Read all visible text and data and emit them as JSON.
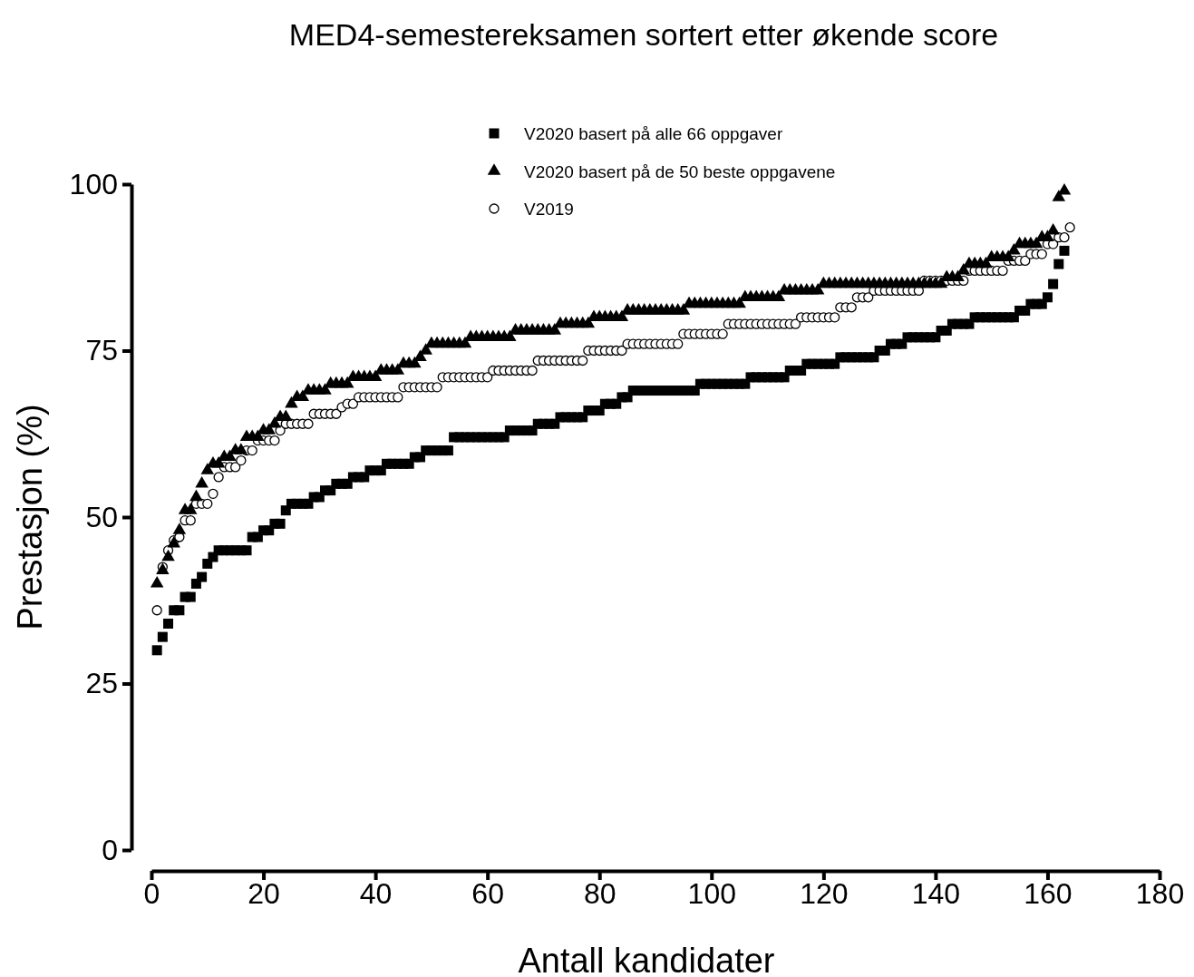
{
  "chart_data": {
    "type": "scatter",
    "title": "MED4-semestereksamen sortert etter økende score",
    "xlabel": "Antall kandidater",
    "ylabel": "Prestasjon (%)",
    "x": [
      1,
      2,
      3,
      4,
      5,
      6,
      7,
      8,
      9,
      10,
      11,
      12,
      13,
      14,
      15,
      16,
      17,
      18,
      19,
      20,
      21,
      22,
      23,
      24,
      25,
      26,
      27,
      28,
      29,
      30,
      31,
      32,
      33,
      34,
      35,
      36,
      37,
      38,
      39,
      40,
      41,
      42,
      43,
      44,
      45,
      46,
      47,
      48,
      49,
      50,
      51,
      52,
      53,
      54,
      55,
      56,
      57,
      58,
      59,
      60,
      61,
      62,
      63,
      64,
      65,
      66,
      67,
      68,
      69,
      70,
      71,
      72,
      73,
      74,
      75,
      76,
      77,
      78,
      79,
      80,
      81,
      82,
      83,
      84,
      85,
      86,
      87,
      88,
      89,
      90,
      91,
      92,
      93,
      94,
      95,
      96,
      97,
      98,
      99,
      100,
      101,
      102,
      103,
      104,
      105,
      106,
      107,
      108,
      109,
      110,
      111,
      112,
      113,
      114,
      115,
      116,
      117,
      118,
      119,
      120,
      121,
      122,
      123,
      124,
      125,
      126,
      127,
      128,
      129,
      130,
      131,
      132,
      133,
      134,
      135,
      136,
      137,
      138,
      139,
      140,
      141,
      142,
      143,
      144,
      145,
      146,
      147,
      148,
      149,
      150,
      151,
      152,
      153,
      154,
      155,
      156,
      157,
      158,
      159,
      160,
      161,
      162,
      163,
      164
    ],
    "series": [
      {
        "name": "V2020 basert på alle 66 oppgaver",
        "color": "#000000",
        "marker": "square",
        "values": [
          30,
          32,
          34,
          36,
          36,
          38,
          38,
          40,
          41,
          43,
          44,
          45,
          45,
          45,
          45,
          45,
          45,
          47,
          47,
          48,
          48,
          49,
          49,
          51,
          52,
          52,
          52,
          52,
          53,
          53,
          54,
          54,
          55,
          55,
          55,
          56,
          56,
          56,
          57,
          57,
          57,
          58,
          58,
          58,
          58,
          58,
          59,
          59,
          60,
          60,
          60,
          60,
          60,
          62,
          62,
          62,
          62,
          62,
          62,
          62,
          62,
          62,
          62,
          63,
          63,
          63,
          63,
          63,
          64,
          64,
          64,
          64,
          65,
          65,
          65,
          65,
          65,
          66,
          66,
          66,
          67,
          67,
          67,
          68,
          68,
          69,
          69,
          69,
          69,
          69,
          69,
          69,
          69,
          69,
          69,
          69,
          69,
          70,
          70,
          70,
          70,
          70,
          70,
          70,
          70,
          70,
          71,
          71,
          71,
          71,
          71,
          71,
          71,
          72,
          72,
          72,
          73,
          73,
          73,
          73,
          73,
          73,
          74,
          74,
          74,
          74,
          74,
          74,
          74,
          75,
          75,
          76,
          76,
          76,
          77,
          77,
          77,
          77,
          77,
          77,
          78,
          78,
          79,
          79,
          79,
          79,
          80,
          80,
          80,
          80,
          80,
          80,
          80,
          80,
          81,
          81,
          82,
          82,
          82,
          83,
          85,
          88,
          90,
          null
        ]
      },
      {
        "name": "V2020 basert på de 50 beste oppgavene",
        "color": "#000000",
        "marker": "triangle",
        "values": [
          40,
          42,
          44,
          46,
          48,
          51,
          51,
          53,
          55,
          57,
          58,
          58,
          59,
          59,
          60,
          60,
          62,
          62,
          62,
          63,
          63,
          64,
          65,
          65,
          67,
          68,
          68,
          69,
          69,
          69,
          69,
          70,
          70,
          70,
          70,
          71,
          71,
          71,
          71,
          71,
          72,
          72,
          72,
          72,
          73,
          73,
          73,
          74,
          75,
          76,
          76,
          76,
          76,
          76,
          76,
          76,
          77,
          77,
          77,
          77,
          77,
          77,
          77,
          77,
          78,
          78,
          78,
          78,
          78,
          78,
          78,
          78,
          79,
          79,
          79,
          79,
          79,
          79,
          80,
          80,
          80,
          80,
          80,
          80,
          81,
          81,
          81,
          81,
          81,
          81,
          81,
          81,
          81,
          81,
          81,
          82,
          82,
          82,
          82,
          82,
          82,
          82,
          82,
          82,
          82,
          83,
          83,
          83,
          83,
          83,
          83,
          83,
          84,
          84,
          84,
          84,
          84,
          84,
          84,
          85,
          85,
          85,
          85,
          85,
          85,
          85,
          85,
          85,
          85,
          85,
          85,
          85,
          85,
          85,
          85,
          85,
          85,
          85,
          85,
          85,
          85,
          86,
          86,
          86,
          87,
          88,
          88,
          88,
          88,
          89,
          89,
          89,
          89,
          90,
          91,
          91,
          91,
          91,
          92,
          92,
          93,
          98,
          99,
          null
        ]
      },
      {
        "name": "V2019",
        "color": "#000000",
        "marker": "circle",
        "values": [
          36,
          42.5,
          45,
          46.5,
          47,
          49.5,
          49.5,
          52,
          52,
          52,
          53.5,
          56,
          57.5,
          57.5,
          57.5,
          58.5,
          60,
          60,
          61.5,
          61.5,
          61.5,
          61.5,
          63,
          64,
          64,
          64,
          64,
          64,
          65.5,
          65.5,
          65.5,
          65.5,
          65.5,
          66.5,
          67,
          67,
          68,
          68,
          68,
          68,
          68,
          68,
          68,
          68,
          69.5,
          69.5,
          69.5,
          69.5,
          69.5,
          69.5,
          69.5,
          71,
          71,
          71,
          71,
          71,
          71,
          71,
          71,
          71,
          72,
          72,
          72,
          72,
          72,
          72,
          72,
          72,
          73.5,
          73.5,
          73.5,
          73.5,
          73.5,
          73.5,
          73.5,
          73.5,
          73.5,
          75,
          75,
          75,
          75,
          75,
          75,
          75,
          76,
          76,
          76,
          76,
          76,
          76,
          76,
          76,
          76,
          76,
          77.5,
          77.5,
          77.5,
          77.5,
          77.5,
          77.5,
          77.5,
          77.5,
          79,
          79,
          79,
          79,
          79,
          79,
          79,
          79,
          79,
          79,
          79,
          79,
          79,
          80,
          80,
          80,
          80,
          80,
          80,
          80,
          81.5,
          81.5,
          81.5,
          83,
          83,
          83,
          84,
          84,
          84,
          84,
          84,
          84,
          84,
          84,
          84,
          85.5,
          85.5,
          85.5,
          85.5,
          85.5,
          85.5,
          85.5,
          85.5,
          87,
          87,
          87,
          87,
          87,
          87,
          87,
          88.5,
          88.5,
          88.5,
          88.5,
          89.5,
          89.5,
          89.5,
          91,
          91,
          92,
          92,
          93.5
        ]
      }
    ],
    "xlim": [
      0,
      180
    ],
    "xticks": [
      0,
      20,
      40,
      60,
      80,
      100,
      120,
      140,
      160,
      180
    ],
    "ylim": [
      0,
      100
    ],
    "yticks": [
      0,
      25,
      50,
      75,
      100
    ],
    "legend": "top",
    "grid": false
  }
}
